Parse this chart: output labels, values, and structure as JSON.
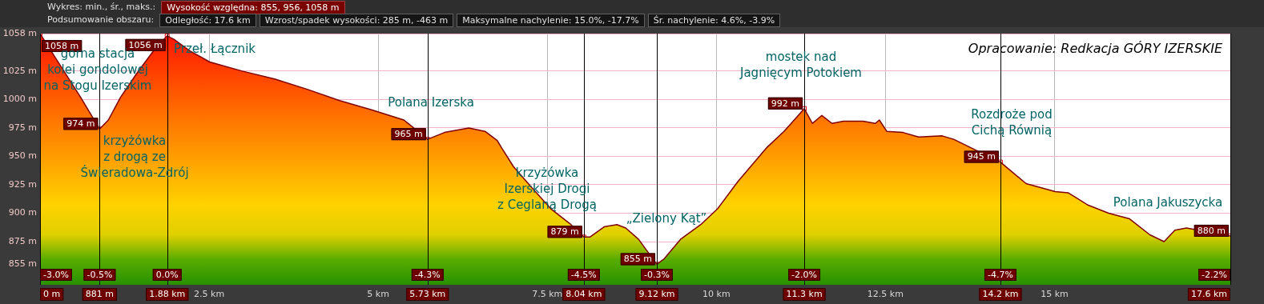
{
  "chart_data": {
    "type": "area",
    "title": "Wykres: min., śr., maks.:",
    "subtitle": "Wysokość względna: 855, 956, 1058 m",
    "annotations": [
      "Podsumowanie obszaru:",
      "Odległość: 17.6 km",
      "Wzrost/spadek wysokości: 285 m, -463 m",
      "Maksymalne nachylenie: 15.0%, -17.7%",
      "Śr. nachylenie: 4.6%, -3.9%",
      "Opracowanie: Redkacja GÓRY IZERSKIE",
      "górna stacja\nkolei gondolowej\nna Stogu Izerskim",
      "Przeł. Łącznik",
      "krzyżówka\nz drogą ze\nŚwieradowa-Zdrój",
      "Polana Izerska",
      "krzyżówka\nIzerskiej Drogi\nz Ceglaną Drogą",
      "„Zielony Kąt”",
      "mostek nad\nJagnięcym Potokiem",
      "Rozdroże pod\nCichą Równią",
      "Polana Jakuszycka",
      {
        "text": "-3.0%",
        "x": 0
      },
      {
        "text": "-0.5%",
        "x": 0.881
      },
      {
        "text": "0.0%",
        "x": 1.88
      },
      {
        "text": "-4.3%",
        "x": 5.73
      },
      {
        "text": "-4.5%",
        "x": 8.04
      },
      {
        "text": "-0.3%",
        "x": 9.12
      },
      {
        "text": "-2.0%",
        "x": 11.3
      },
      {
        "text": "-4.7%",
        "x": 14.2
      },
      {
        "text": "-2.2%",
        "x": 17.6
      }
    ],
    "xlim": [
      0,
      17.6
    ],
    "xticks": [
      {
        "value": 2.5,
        "label": "2.5 km"
      },
      {
        "value": 5,
        "label": "5 km"
      },
      {
        "value": 7.5,
        "label": "7.5 km"
      },
      {
        "value": 10,
        "label": "10 km"
      },
      {
        "value": 12.5,
        "label": "12.5 km"
      },
      {
        "value": 15,
        "label": "15 km"
      }
    ],
    "ylim": [
      837,
      1058
    ],
    "yticks": [
      {
        "value": 855,
        "label": "855 m"
      },
      {
        "value": 875,
        "label": "875 m"
      },
      {
        "value": 900,
        "label": "900 m"
      },
      {
        "value": 925,
        "label": "925 m"
      },
      {
        "value": 950,
        "label": "950 m"
      },
      {
        "value": 975,
        "label": "975 m"
      },
      {
        "value": 1000,
        "label": "1000 m"
      },
      {
        "value": 1025,
        "label": "1025 m"
      },
      {
        "value": 1058,
        "label": "1058 m"
      }
    ],
    "grid": true,
    "legend": false,
    "series": [
      {
        "color": "#800000",
        "x": [
          0,
          0.3,
          0.6,
          0.77,
          0.881,
          1.01,
          1.19,
          1.43,
          1.68,
          1.88,
          1.98,
          2.21,
          2.51,
          2.99,
          3.47,
          3.95,
          4.43,
          4.9,
          5.38,
          5.73,
          5.98,
          6.34,
          6.58,
          6.76,
          6.82,
          7.0,
          7.25,
          7.55,
          7.85,
          8.04,
          8.13,
          8.34,
          8.53,
          8.66,
          8.85,
          9.12,
          9.23,
          9.47,
          9.77,
          10.02,
          10.32,
          10.75,
          11.0,
          11.18,
          11.3,
          11.42,
          11.56,
          11.71,
          11.88,
          12.17,
          12.35,
          12.41,
          12.52,
          12.76,
          12.99,
          13.34,
          13.51,
          13.75,
          14.2,
          14.58,
          15.01,
          15.2,
          15.5,
          15.8,
          16.11,
          16.41,
          16.62,
          16.78,
          16.95,
          17.6
        ],
        "values": [
          1058,
          1030,
          1002,
          985,
          974,
          982,
          1002,
          1023,
          1043,
          1056,
          1053,
          1043,
          1033,
          1025,
          1018,
          1009,
          999,
          991,
          982,
          965,
          971,
          975,
          972,
          964,
          958,
          941,
          924,
          904,
          890,
          879,
          879,
          888,
          890,
          887,
          877,
          855,
          860,
          877,
          890,
          904,
          928,
          958,
          972,
          984,
          992,
          979,
          986,
          979,
          981,
          981,
          979,
          982,
          972,
          971,
          967,
          968,
          965,
          958,
          945,
          926,
          919,
          918,
          907,
          900,
          895,
          881,
          875,
          885,
          887,
          880
        ]
      },
      {
        "type": "scatter",
        "color": "#e00000",
        "marker": "square",
        "x": [
          0,
          0.881,
          1.88,
          5.73,
          8.04,
          9.12,
          11.3,
          14.2,
          17.6
        ],
        "values": [
          1058,
          974,
          1056,
          965,
          879,
          855,
          992,
          945,
          880
        ],
        "value_labels": [
          "1058 m",
          "974 m",
          "1056 m",
          "965 m",
          "879 m",
          "855 m",
          "992 m",
          "945 m",
          "880 m"
        ]
      }
    ],
    "ref_lines": [
      {
        "axis": "x",
        "value": 0,
        "label": "0 m",
        "color": "#000000"
      },
      {
        "axis": "x",
        "value": 0.881,
        "label": "881 m",
        "color": "#000000"
      },
      {
        "axis": "x",
        "value": 1.88,
        "label": "1.88 km",
        "color": "#000000"
      },
      {
        "axis": "x",
        "value": 5.73,
        "label": "5.73 km",
        "color": "#000000"
      },
      {
        "axis": "x",
        "value": 8.04,
        "label": "8.04 km",
        "color": "#000000"
      },
      {
        "axis": "x",
        "value": 9.12,
        "label": "9.12 km",
        "color": "#000000"
      },
      {
        "axis": "x",
        "value": 11.3,
        "label": "11.3 km",
        "color": "#000000"
      },
      {
        "axis": "x",
        "value": 14.2,
        "label": "14.2 km",
        "color": "#000000"
      },
      {
        "axis": "x",
        "value": 17.6,
        "label": "17.6 km",
        "color": "#000000"
      }
    ]
  }
}
